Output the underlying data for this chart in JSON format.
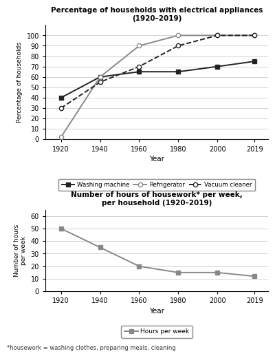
{
  "years": [
    1920,
    1940,
    1960,
    1980,
    2000,
    2019
  ],
  "washing_machine": [
    40,
    60,
    65,
    65,
    70,
    75
  ],
  "refrigerator": [
    2,
    60,
    90,
    100,
    100,
    100
  ],
  "vacuum_cleaner": [
    30,
    55,
    70,
    90,
    100,
    100
  ],
  "hours_per_week": [
    50,
    35,
    20,
    15,
    15,
    12
  ],
  "title1": "Percentage of households with electrical appliances\n(1920–2019)",
  "title2": "Number of hours of housework* per week,\nper household (1920–2019)",
  "ylabel1": "Percentage of households",
  "ylabel2": "Number of hours\nper week",
  "xlabel": "Year",
  "footnote": "*housework = washing clothes, preparing meals, cleaning",
  "ylim1": [
    0,
    110
  ],
  "yticks1": [
    0,
    10,
    20,
    30,
    40,
    50,
    60,
    70,
    80,
    90,
    100
  ],
  "ylim2": [
    0,
    65
  ],
  "yticks2": [
    0,
    10,
    20,
    30,
    40,
    50,
    60
  ],
  "line_color_wm": "#222222",
  "line_color_ref": "#888888",
  "line_color_vc": "#222222",
  "line_color_hours": "#888888",
  "bg_color": "#ffffff"
}
